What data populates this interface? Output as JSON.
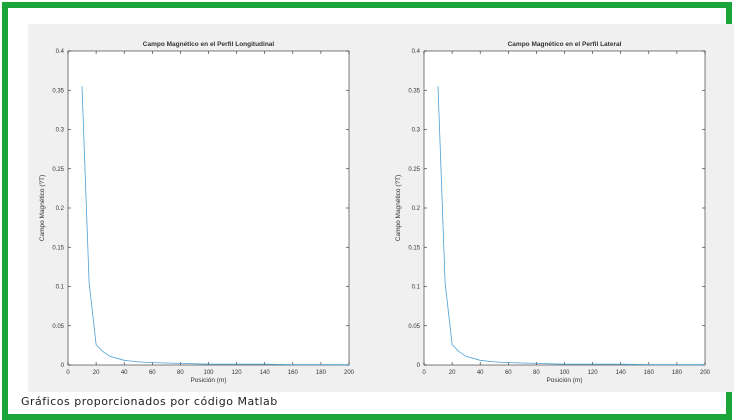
{
  "chart_data": [
    {
      "type": "line",
      "title": "Campo Magnético en el Perfil Longitudinal",
      "xlabel": "Posición (m)",
      "ylabel": "Campo Magnético (?T)",
      "xlim": [
        0,
        200
      ],
      "ylim": [
        0,
        0.4
      ],
      "xticks": [
        "0",
        "20",
        "40",
        "60",
        "80",
        "100",
        "120",
        "140",
        "160",
        "180",
        "200"
      ],
      "yticks": [
        "0",
        "0.05",
        "0.1",
        "0.15",
        "0.2",
        "0.25",
        "0.3",
        "0.35",
        "0.4"
      ],
      "grid": false,
      "color": "#4d9fd6",
      "series": [
        {
          "x": [
            10,
            15,
            20,
            25,
            30,
            40,
            50,
            60,
            80,
            100,
            120,
            140,
            160,
            180,
            200
          ],
          "values": [
            0.355,
            0.105,
            0.026,
            0.017,
            0.011,
            0.006,
            0.004,
            0.003,
            0.002,
            0.001,
            0.001,
            0.001,
            0.0005,
            0.0005,
            0.0004
          ]
        }
      ]
    },
    {
      "type": "line",
      "title": "Campo Magnético en el Perfil Lateral",
      "xlabel": "Posición (m)",
      "ylabel": "Campo Magnético (?T)",
      "xlim": [
        0,
        200
      ],
      "ylim": [
        0,
        0.4
      ],
      "xticks": [
        "0",
        "20",
        "40",
        "60",
        "80",
        "100",
        "120",
        "140",
        "160",
        "180",
        "200"
      ],
      "yticks": [
        "0",
        "0.05",
        "0.1",
        "0.15",
        "0.2",
        "0.25",
        "0.3",
        "0.35",
        "0.4"
      ],
      "grid": false,
      "color": "#4d9fd6",
      "series": [
        {
          "x": [
            10,
            15,
            20,
            25,
            30,
            40,
            50,
            60,
            80,
            100,
            120,
            140,
            160,
            180,
            200
          ],
          "values": [
            0.355,
            0.105,
            0.026,
            0.017,
            0.011,
            0.006,
            0.004,
            0.003,
            0.002,
            0.001,
            0.001,
            0.001,
            0.0005,
            0.0005,
            0.0004
          ]
        }
      ]
    }
  ],
  "caption": "Gráficos proporcionados por código Matlab",
  "colors": {
    "frame_border": "#1aa63a",
    "figure_bg": "#f0f0f0",
    "line": "#4d9fd6"
  }
}
